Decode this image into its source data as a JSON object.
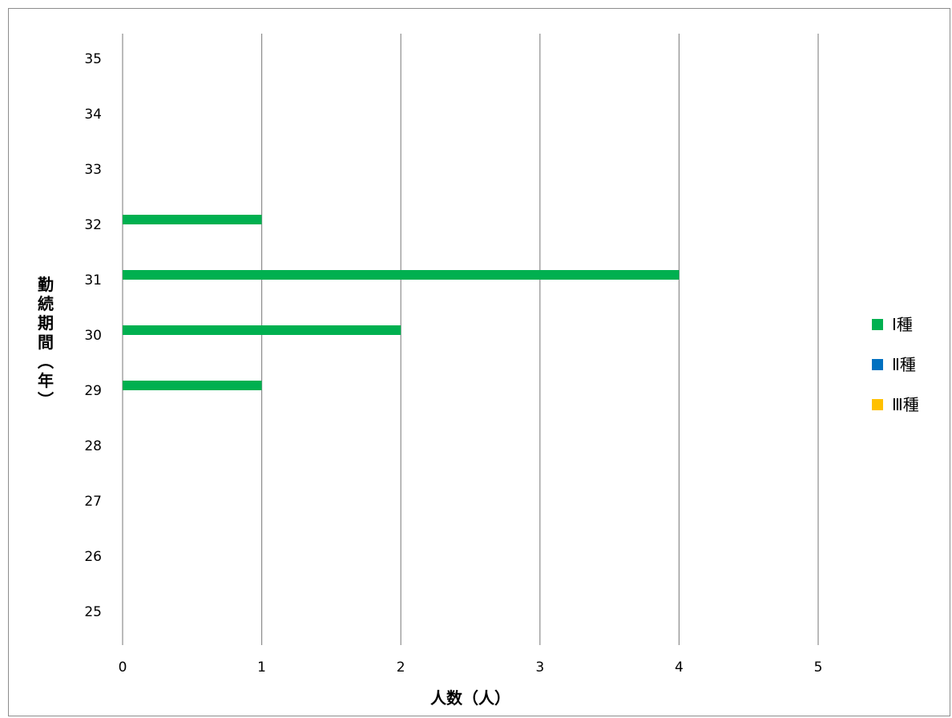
{
  "chart_data": {
    "type": "bar",
    "orientation": "horizontal",
    "title": "",
    "xlabel": "人数（人）",
    "ylabel": "勤続期間（年）",
    "xlim": [
      0,
      5
    ],
    "ylim": [
      25,
      35
    ],
    "x_ticks": [
      "0",
      "1",
      "2",
      "3",
      "4",
      "5"
    ],
    "categories": [
      "25",
      "26",
      "27",
      "28",
      "29",
      "30",
      "31",
      "32",
      "33",
      "34",
      "35"
    ],
    "series": [
      {
        "name": "Ⅰ種",
        "color": "#00b050",
        "values": [
          0,
          0,
          0,
          0,
          1,
          2,
          4,
          1,
          0,
          0,
          0
        ]
      },
      {
        "name": "Ⅱ種",
        "color": "#0070c0",
        "values": [
          0,
          0,
          0,
          0,
          0,
          0,
          0,
          0,
          0,
          0,
          0
        ]
      },
      {
        "name": "Ⅲ種",
        "color": "#ffc000",
        "values": [
          0,
          0,
          0,
          0,
          0,
          0,
          0,
          0,
          0,
          0,
          0
        ]
      }
    ],
    "grid": {
      "vertical": true,
      "horizontal": false
    },
    "legend_position": "right"
  }
}
